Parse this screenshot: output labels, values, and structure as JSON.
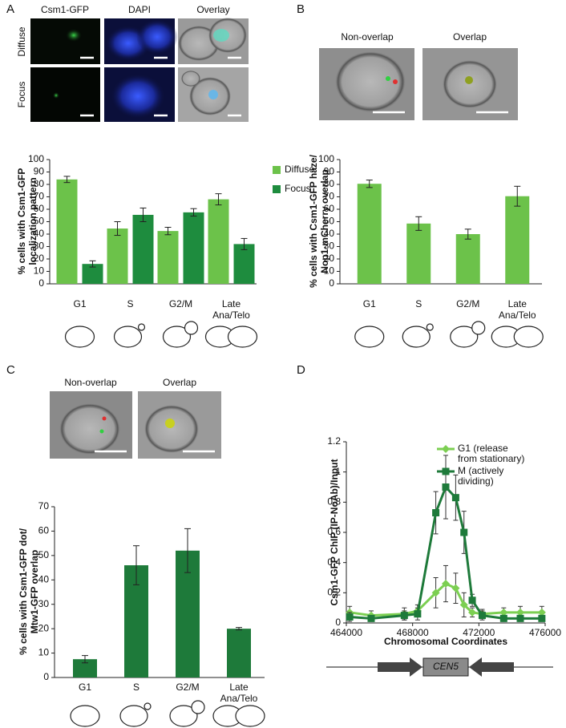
{
  "panels": [
    {
      "label": "A",
      "image_titles": [
        "Csm1-GFP",
        "DAPI",
        "Overlay"
      ],
      "row_labels": [
        "Diffuse",
        "Focus"
      ]
    },
    {
      "label": "B",
      "image_titles": [
        "Non-overlap",
        "Overlap"
      ]
    },
    {
      "label": "C",
      "image_titles": [
        "Non-overlap",
        "Overlap"
      ]
    },
    {
      "label": "D"
    }
  ],
  "chart_data": [
    {
      "type": "bar",
      "ylabel": [
        "% cells with Csm1-GFP",
        "localization pattern"
      ],
      "categories": [
        "G1",
        "S",
        "G2/M",
        "Late Ana/Telo"
      ],
      "series": [
        {
          "name": "Diffuse",
          "color": "#6cc24a",
          "values": [
            84,
            44.5,
            42.5,
            68
          ],
          "errors": [
            2.5,
            5.5,
            3,
            4.5
          ]
        },
        {
          "name": "Focus",
          "color": "#1e8c3e",
          "values": [
            16,
            55.5,
            57.5,
            32
          ],
          "errors": [
            2.5,
            5.5,
            3,
            4.5
          ]
        }
      ],
      "ylim": [
        0,
        100
      ],
      "yticks": [
        0,
        10,
        20,
        30,
        40,
        50,
        60,
        70,
        80,
        90,
        100
      ],
      "legend": "upper right"
    },
    {
      "type": "bar",
      "ylabel": [
        "% cells with Csm1-GFP haze/",
        "Nop1-mCherry overlap"
      ],
      "categories": [
        "G1",
        "S",
        "G2/M",
        "Late Ana/Telo"
      ],
      "series": [
        {
          "color": "#6cc24a",
          "values": [
            80.5,
            48.5,
            40,
            70.5
          ],
          "errors": [
            3,
            5.5,
            4,
            8
          ]
        }
      ],
      "ylim": [
        0,
        100
      ],
      "yticks": [
        0,
        10,
        20,
        30,
        40,
        50,
        60,
        70,
        80,
        90,
        100
      ]
    },
    {
      "type": "bar",
      "ylabel": [
        "% cells with Csm1-GFP dot/",
        "Mtw1-GFP overlap"
      ],
      "categories": [
        "G1",
        "S",
        "G2/M",
        "Late Ana/Telo"
      ],
      "series": [
        {
          "color": "#1e7a3a",
          "values": [
            7.5,
            46,
            52,
            20
          ],
          "errors": [
            1.5,
            8,
            9,
            0.5
          ]
        }
      ],
      "ylim": [
        0,
        70
      ],
      "yticks": [
        0,
        10,
        20,
        30,
        40,
        50,
        60,
        70
      ]
    },
    {
      "type": "line",
      "xlabel": "Chromosomal Coordinates",
      "ylabel": [
        "Csm1-GFP ChIP (IP-NoAb)/Input"
      ],
      "x": [
        464200,
        465500,
        467500,
        468300,
        469400,
        470000,
        470600,
        471100,
        471600,
        472200,
        473500,
        474500,
        475800
      ],
      "series": [
        {
          "name": "G1 (release from stationary)",
          "color": "#7ccf52",
          "marker": "diamond",
          "values": [
            0.07,
            0.05,
            0.06,
            0.08,
            0.2,
            0.26,
            0.23,
            0.12,
            0.07,
            0.06,
            0.07,
            0.07,
            0.07
          ],
          "errors": [
            0.04,
            0.03,
            0.04,
            0.04,
            0.1,
            0.12,
            0.1,
            0.08,
            0.03,
            0.03,
            0.03,
            0.04,
            0.04
          ]
        },
        {
          "name": "M (actively dividing)",
          "color": "#1e7a3a",
          "marker": "square",
          "values": [
            0.04,
            0.03,
            0.05,
            0.06,
            0.73,
            0.9,
            0.83,
            0.6,
            0.15,
            0.05,
            0.03,
            0.03,
            0.03
          ],
          "errors": [
            0.03,
            0.02,
            0.03,
            0.04,
            0.14,
            0.21,
            0.15,
            0.14,
            0.04,
            0.03,
            0.02,
            0.02,
            0.02
          ]
        }
      ],
      "xlim": [
        464000,
        476000
      ],
      "xticks": [
        464000,
        468000,
        472000,
        476000
      ],
      "ylim": [
        0,
        1.2
      ],
      "yticks": [
        0,
        0.2,
        0.4,
        0.6,
        0.8,
        1,
        1.2
      ],
      "legend": "upper right",
      "annotation": "CEN5"
    }
  ]
}
